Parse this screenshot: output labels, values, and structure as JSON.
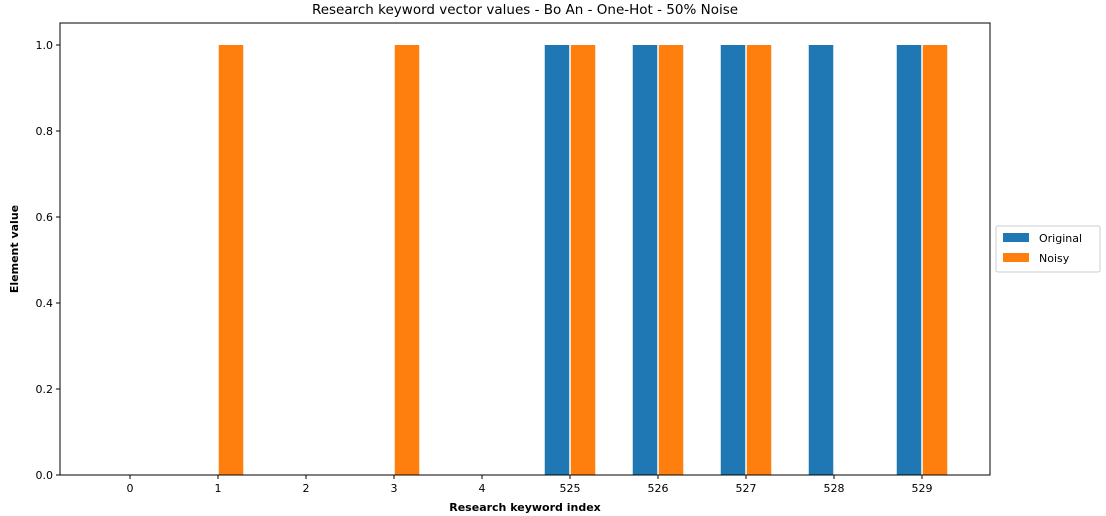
{
  "chart_data": {
    "type": "bar",
    "title": "Research keyword vector values - Bo An - One-Hot - 50% Noise",
    "xlabel": "Research keyword index",
    "ylabel": "Element value",
    "categories": [
      "0",
      "1",
      "2",
      "3",
      "4",
      "525",
      "526",
      "527",
      "528",
      "529"
    ],
    "series": [
      {
        "name": "Original",
        "color": "#1f77b4",
        "values": [
          0,
          0,
          0,
          0,
          0,
          1,
          1,
          1,
          1,
          1
        ]
      },
      {
        "name": "Noisy",
        "color": "#ff7f0e",
        "values": [
          0,
          1,
          0,
          1,
          0,
          1,
          1,
          1,
          0,
          1
        ]
      }
    ],
    "ylim": [
      0,
      1.0
    ],
    "yticks": [
      "0.0",
      "0.2",
      "0.4",
      "0.6",
      "0.8",
      "1.0"
    ],
    "grid": false,
    "legend_position": "outside right"
  }
}
